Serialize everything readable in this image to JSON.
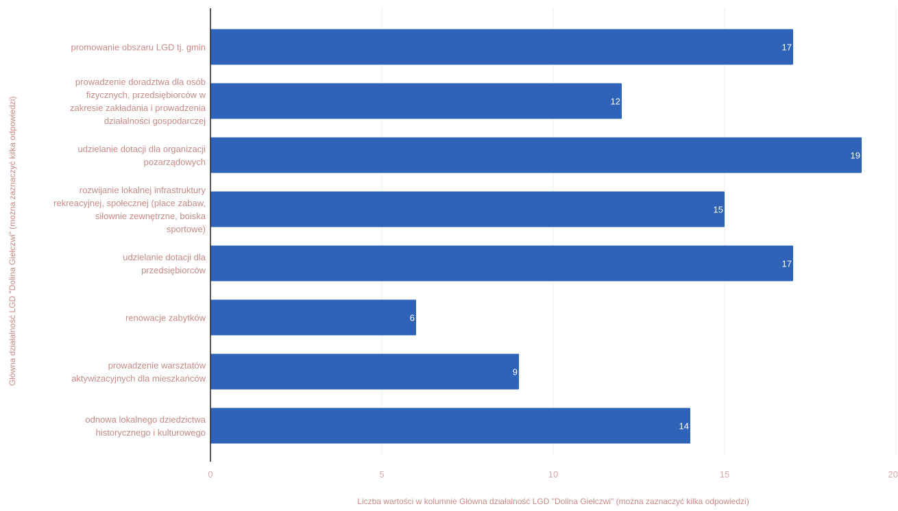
{
  "colors": {
    "bar": "#2e63b8",
    "bar_label": "#ffffff",
    "category_label": "#c98a86",
    "axis_title": "#c98a86",
    "tick_label": "#d8a8a4",
    "gridline": "#eeeeee",
    "axis_line": "#222222"
  },
  "chart_data": {
    "type": "bar",
    "orientation": "horizontal",
    "categories": [
      "promowanie obszaru LGD tj. gmin",
      "prowadzenie doradztwa dla osób fizycznych, przedsiębiorców w zakresie zakładania i prowadzenia działalności gospodarczej",
      "udzielanie dotacji dla organizacji pozarządowych",
      "rozwijanie lokalnej infrastruktury rekreacyjnej, społecznej (place zabaw, siłownie zewnętrzne, boiska sportowe)",
      "udzielanie dotacji dla przedsiębiorców",
      "renowacje zabytków",
      "prowadzenie warsztatów aktywizacyjnych dla mieszkańców",
      "odnowa lokalnego dziedzictwa historycznego i kulturowego"
    ],
    "category_lines": [
      [
        "promowanie obszaru LGD tj. gmin"
      ],
      [
        "prowadzenie doradztwa dla osób",
        "fizycznych, przedsiębiorców w",
        "zakresie zakładania i prowadzenia",
        "działalności gospodarczej"
      ],
      [
        "udzielanie dotacji dla organizacji",
        "pozarządowych"
      ],
      [
        "rozwijanie lokalnej infrastruktury",
        "rekreacyjnej, społecznej (place zabaw,",
        "siłownie zewnętrzne, boiska",
        "sportowe)"
      ],
      [
        "udzielanie dotacji dla",
        "przedsiębiorców"
      ],
      [
        "renowacje zabytków"
      ],
      [
        "prowadzenie warsztatów",
        "aktywizacyjnych dla mieszkańców"
      ],
      [
        "odnowa lokalnego dziedzictwa",
        "historycznego i kulturowego"
      ]
    ],
    "values": [
      17,
      12,
      19,
      15,
      17,
      6,
      9,
      14
    ],
    "value_labels": [
      "17",
      "12",
      "19",
      "15",
      "17",
      "6",
      "9",
      "14"
    ],
    "xlim": [
      0,
      20
    ],
    "x_ticks": [
      "0",
      "5",
      "10",
      "15",
      "20"
    ],
    "xlabel": "Liczba wartości w kolumnie Główna działalność LGD \"Dolina Giełczwi\" (można zaznaczyć kilka odpowiedzi)",
    "ylabel": "Główna działalność LGD \"Dolina Giełczwi\" (można zaznaczyć kilka odpowiedzi)",
    "grid": true,
    "legend": false
  }
}
